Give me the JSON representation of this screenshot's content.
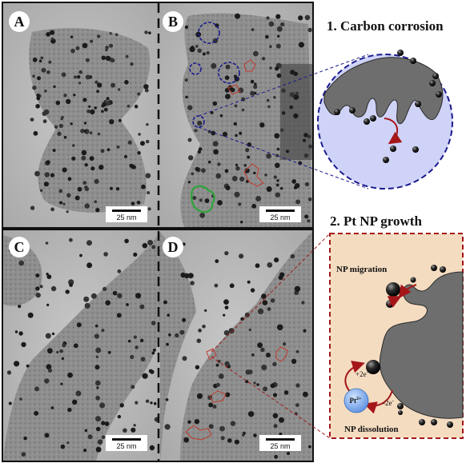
{
  "panels": {
    "A": {
      "label": "A",
      "scale": "25 nm"
    },
    "B": {
      "label": "B",
      "scale": "25 nm"
    },
    "C": {
      "label": "C",
      "scale": "25 nm"
    },
    "D": {
      "label": "D",
      "scale": "25 nm"
    }
  },
  "inset1": {
    "title": "1. Carbon corrosion"
  },
  "inset2": {
    "title": "2. Pt NP growth",
    "migration": "NP migration",
    "dissolution": "NP dissolution",
    "reduction": "+2e",
    "oxidation": "-2e",
    "ion": "Pt",
    "ion_charge": "2+",
    "electron_sign": "-"
  },
  "colors": {
    "blue_circle": "#1a1a8c",
    "red_outline": "#c0392b",
    "green_outline": "#2ea43a",
    "inset1_bg": "#cfd3f7",
    "inset2_bg": "#f4dcc1",
    "support_gray": "#6e6e6e"
  }
}
